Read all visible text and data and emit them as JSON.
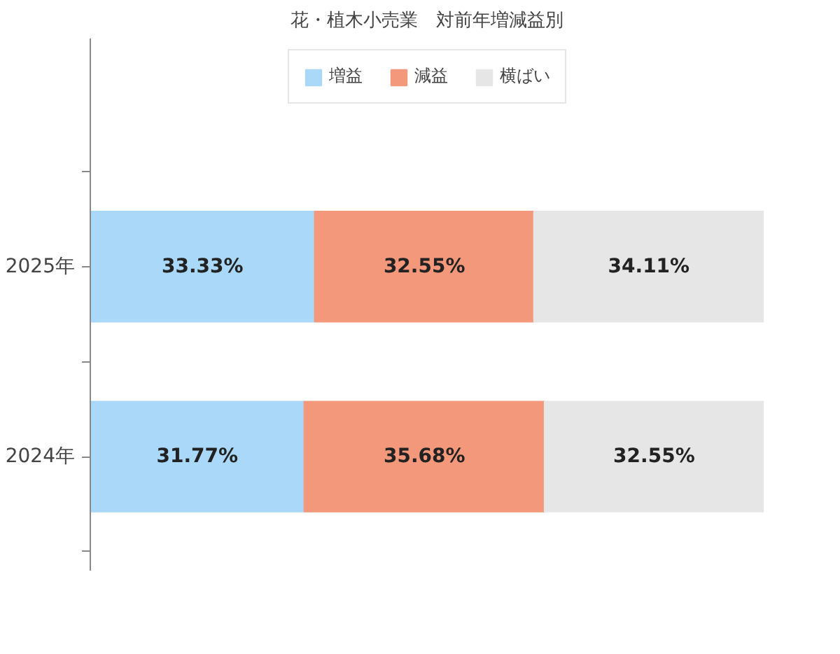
{
  "chart_data": {
    "type": "bar",
    "orientation": "horizontal",
    "stacked": true,
    "title": "花・植木小売業　対前年増減益別",
    "categories": [
      "2025年",
      "2024年"
    ],
    "series": [
      {
        "name": "増益",
        "color": "#a9d8f8",
        "values": [
          33.33,
          31.77
        ],
        "value_labels": [
          "33.33%",
          "31.77%"
        ]
      },
      {
        "name": "減益",
        "color": "#f4987c",
        "values": [
          32.55,
          35.68
        ],
        "value_labels": [
          "32.55%",
          "35.68%"
        ]
      },
      {
        "name": "横ばい",
        "color": "#e6e6e6",
        "values": [
          34.11,
          32.55
        ],
        "value_labels": [
          "34.11%",
          "32.55%"
        ]
      }
    ],
    "legend": "top",
    "grid": false,
    "tick_labels": "y"
  }
}
